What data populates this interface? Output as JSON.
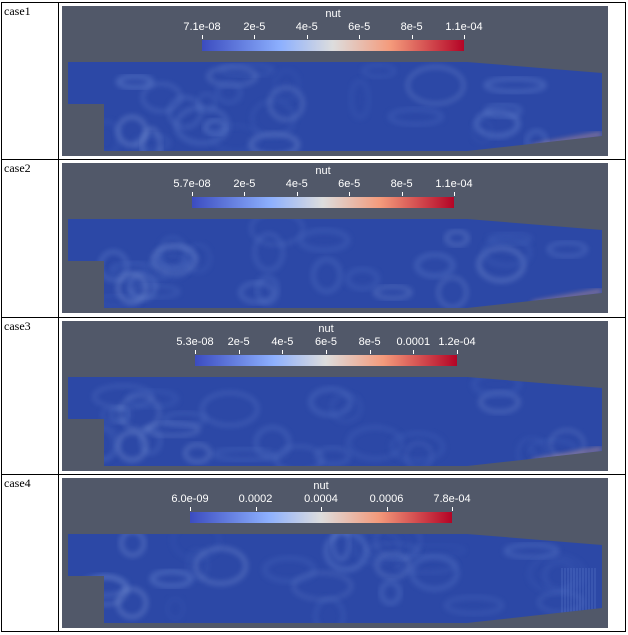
{
  "rows": [
    {
      "label": "case1",
      "colorbar": {
        "title": "nut",
        "ticks": [
          "7.1e-08",
          "2e-5",
          "4e-5",
          "6e-5",
          "8e-5",
          "1.1e-04"
        ]
      }
    },
    {
      "label": "case2",
      "colorbar": {
        "title": "nut",
        "ticks": [
          "5.7e-08",
          "2e-5",
          "4e-5",
          "6e-5",
          "8e-5",
          "1.1e-04"
        ]
      }
    },
    {
      "label": "case3",
      "colorbar": {
        "title": "nut",
        "ticks": [
          "5.3e-08",
          "2e-5",
          "4e-5",
          "6e-5",
          "8e-5",
          "0.0001",
          "1.2e-04"
        ]
      }
    },
    {
      "label": "case4",
      "colorbar": {
        "title": "nut",
        "ticks": [
          "6.0e-09",
          "0.0002",
          "0.0004",
          "0.0006",
          "7.8e-04"
        ]
      }
    }
  ],
  "colors": {
    "panel_background": "#515869",
    "field_base": "#2c48a6",
    "colormap_low": "#3b4cc0",
    "colormap_mid": "#dddddd",
    "colormap_high": "#b40426"
  }
}
